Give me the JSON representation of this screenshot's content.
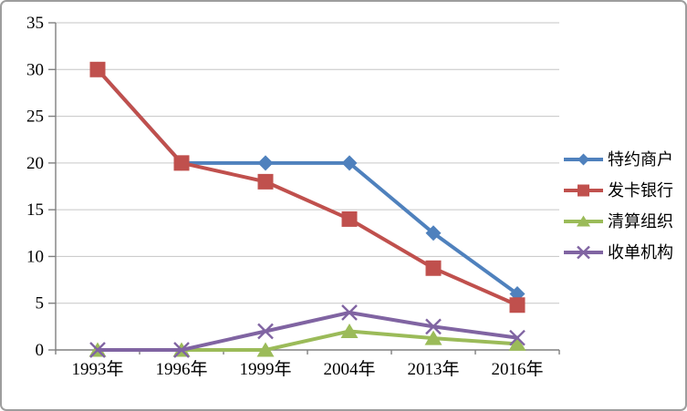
{
  "chart_data": {
    "type": "line",
    "title": "",
    "xlabel": "",
    "ylabel": "",
    "categories": [
      "1993年",
      "1996年",
      "1999年",
      "2004年",
      "2013年",
      "2016年"
    ],
    "series": [
      {
        "name": "特约商户",
        "color": "#4F81BD",
        "marker": "diamond",
        "values": [
          30,
          20,
          20,
          20,
          12.5,
          6
        ]
      },
      {
        "name": "发卡银行",
        "color": "#C0504D",
        "marker": "square",
        "values": [
          30,
          20,
          18,
          14,
          8.75,
          4.8
        ]
      },
      {
        "name": "清算组织",
        "color": "#9BBB59",
        "marker": "triangle",
        "values": [
          0,
          0,
          0,
          2,
          1.25,
          0.65
        ]
      },
      {
        "name": "收单机构",
        "color": "#8064A2",
        "marker": "x",
        "values": [
          0,
          0,
          2,
          4,
          2.5,
          1.3
        ]
      }
    ],
    "ylim": [
      0,
      35
    ],
    "ytick_step": 5,
    "ytick_labels": [
      "0",
      "5",
      "10",
      "15",
      "20",
      "25",
      "30",
      "35"
    ],
    "grid": "horizontal",
    "legend_position": "right",
    "draw_order_note": "series drawn first-to-last; 发卡银行 covers 特约商户 points at 1993 and 1996"
  },
  "style_colors": {
    "background": "#FFFFFF",
    "frame_border": "#9D9D9D",
    "gridline": "#C6C6C6",
    "axis_line": "#808080",
    "text": "#000000"
  }
}
